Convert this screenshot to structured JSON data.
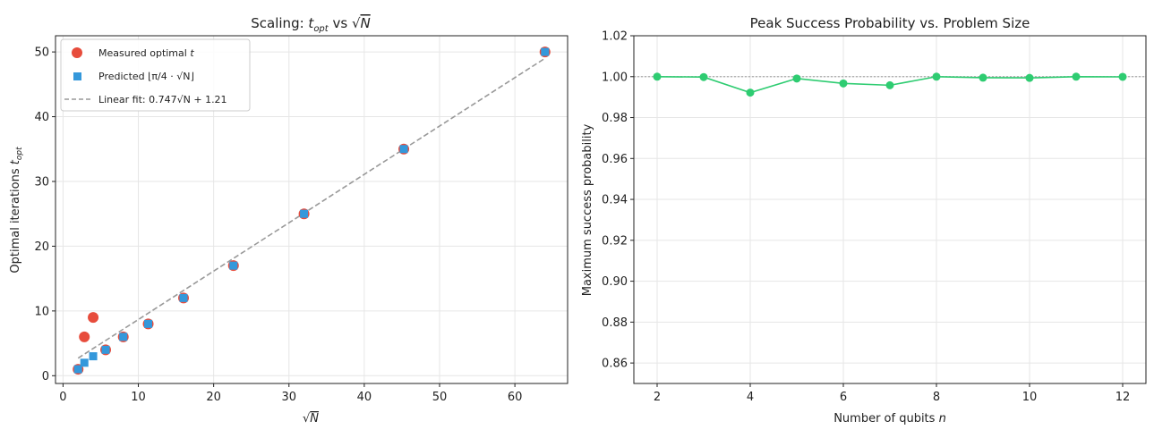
{
  "chart_data": [
    {
      "type": "scatter",
      "title_prefix": "Scaling: ",
      "title_main": "t",
      "title_sub": "opt",
      "title_mid": " vs ",
      "title_sqrt": "N",
      "xlabel_sqrt": "N",
      "ylabel_main": "Optimal iterations ",
      "ylabel_t": "t",
      "ylabel_sub": "opt",
      "xlim": [
        -1,
        67
      ],
      "ylim": [
        -1.2,
        52.5
      ],
      "xticks": [
        0,
        10,
        20,
        30,
        40,
        50,
        60
      ],
      "yticks": [
        0,
        10,
        20,
        30,
        40,
        50
      ],
      "grid": true,
      "legend_position": "upper-left",
      "series": [
        {
          "name": "Measured optimal t",
          "legend_text": "Measured optimal ",
          "legend_italic": "t",
          "marker": "circle",
          "color": "#e74c3c",
          "x": [
            2,
            2.83,
            4,
            5.66,
            8,
            11.31,
            16,
            22.63,
            32,
            45.25,
            64
          ],
          "y": [
            1,
            6,
            9,
            4,
            6,
            8,
            12,
            17,
            25,
            35,
            50
          ]
        },
        {
          "name": "Predicted ⌊π/4·√N⌋",
          "legend_text": "Predicted ⌊π/4 · √N⌋",
          "marker": "square",
          "color": "#3498db",
          "x": [
            2,
            2.83,
            4,
            5.66,
            8,
            11.31,
            16,
            22.63,
            32,
            45.25,
            64
          ],
          "y": [
            1,
            2,
            3,
            4,
            6,
            8,
            12,
            17,
            25,
            35,
            50
          ]
        },
        {
          "name": "Linear fit",
          "legend_text": "Linear fit: 0.747√N + 1.21",
          "style": "dashed",
          "color": "#999999",
          "slope": 0.747,
          "intercept": 1.21,
          "x_range": [
            2,
            64
          ]
        }
      ]
    },
    {
      "type": "line",
      "title": "Peak Success Probability vs. Problem Size",
      "xlabel_main": "Number of qubits ",
      "xlabel_italic": "n",
      "ylabel": "Maximum success probability",
      "xlim": [
        1.5,
        12.5
      ],
      "ylim": [
        0.85,
        1.02
      ],
      "xticks": [
        2,
        4,
        6,
        8,
        10,
        12
      ],
      "yticks": [
        0.86,
        0.88,
        0.9,
        0.92,
        0.94,
        0.96,
        0.98,
        1.0,
        1.02
      ],
      "ytick_labels": [
        "0.86",
        "0.88",
        "0.90",
        "0.92",
        "0.94",
        "0.96",
        "0.98",
        "1.00",
        "1.02"
      ],
      "reference_line": 1.0,
      "grid": true,
      "series": [
        {
          "name": "Max success probability",
          "color": "#2ecc71",
          "x": [
            2,
            3,
            4,
            5,
            6,
            7,
            8,
            9,
            10,
            11,
            12
          ],
          "y": [
            1.0,
            0.9998,
            0.9922,
            0.9991,
            0.9967,
            0.9958,
            1.0,
            0.9995,
            0.9994,
            1.0,
            0.9999
          ]
        }
      ]
    }
  ]
}
